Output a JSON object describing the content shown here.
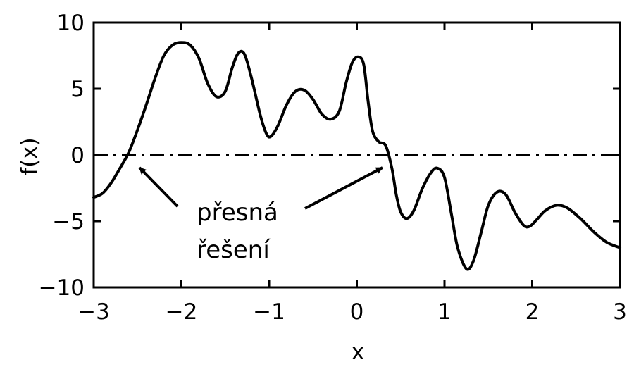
{
  "chart_data": {
    "type": "line",
    "title": "",
    "xlabel": "x",
    "ylabel": "f(x)",
    "xlim": [
      -3,
      3
    ],
    "ylim": [
      -10,
      10
    ],
    "x_ticks": [
      -3,
      -2,
      -1,
      0,
      1,
      2,
      3
    ],
    "x_tick_labels": [
      "−3",
      "−2",
      "−1",
      "0",
      "1",
      "2",
      "3"
    ],
    "y_ticks": [
      -10,
      -5,
      0,
      5,
      10
    ],
    "y_tick_labels": [
      "−10",
      "−5",
      "0",
      "5",
      "10"
    ],
    "grid": false,
    "series": [
      {
        "style": "solid",
        "color": "#000000",
        "points": [
          [
            -3.0,
            -3.2
          ],
          [
            -2.9,
            -2.9
          ],
          [
            -2.8,
            -2.1
          ],
          [
            -2.7,
            -1.0
          ],
          [
            -2.6,
            0.2
          ],
          [
            -2.5,
            1.9
          ],
          [
            -2.4,
            3.8
          ],
          [
            -2.3,
            5.8
          ],
          [
            -2.2,
            7.5
          ],
          [
            -2.1,
            8.3
          ],
          [
            -2.0,
            8.5
          ],
          [
            -1.9,
            8.3
          ],
          [
            -1.8,
            7.3
          ],
          [
            -1.7,
            5.4
          ],
          [
            -1.6,
            4.4
          ],
          [
            -1.5,
            4.8
          ],
          [
            -1.42,
            6.6
          ],
          [
            -1.35,
            7.7
          ],
          [
            -1.28,
            7.6
          ],
          [
            -1.2,
            5.8
          ],
          [
            -1.1,
            3.0
          ],
          [
            -1.03,
            1.6
          ],
          [
            -0.98,
            1.4
          ],
          [
            -0.9,
            2.2
          ],
          [
            -0.8,
            3.8
          ],
          [
            -0.7,
            4.8
          ],
          [
            -0.6,
            4.9
          ],
          [
            -0.5,
            4.2
          ],
          [
            -0.4,
            3.1
          ],
          [
            -0.3,
            2.7
          ],
          [
            -0.2,
            3.3
          ],
          [
            -0.12,
            5.5
          ],
          [
            -0.05,
            7.0
          ],
          [
            0.02,
            7.4
          ],
          [
            0.08,
            6.8
          ],
          [
            0.13,
            4.0
          ],
          [
            0.18,
            1.8
          ],
          [
            0.25,
            1.0
          ],
          [
            0.33,
            0.7
          ],
          [
            0.4,
            -1.0
          ],
          [
            0.45,
            -3.0
          ],
          [
            0.5,
            -4.3
          ],
          [
            0.57,
            -4.8
          ],
          [
            0.65,
            -4.2
          ],
          [
            0.75,
            -2.5
          ],
          [
            0.85,
            -1.3
          ],
          [
            0.92,
            -1.0
          ],
          [
            1.0,
            -1.7
          ],
          [
            1.08,
            -4.5
          ],
          [
            1.15,
            -7.0
          ],
          [
            1.25,
            -8.6
          ],
          [
            1.33,
            -8.0
          ],
          [
            1.42,
            -5.8
          ],
          [
            1.5,
            -3.8
          ],
          [
            1.6,
            -2.8
          ],
          [
            1.7,
            -3.0
          ],
          [
            1.8,
            -4.3
          ],
          [
            1.9,
            -5.3
          ],
          [
            1.97,
            -5.4
          ],
          [
            2.05,
            -4.9
          ],
          [
            2.15,
            -4.2
          ],
          [
            2.28,
            -3.8
          ],
          [
            2.4,
            -4.0
          ],
          [
            2.55,
            -4.8
          ],
          [
            2.7,
            -5.8
          ],
          [
            2.85,
            -6.6
          ],
          [
            3.0,
            -7.0
          ]
        ]
      },
      {
        "style": "dashdot",
        "color": "#000000",
        "points": [
          [
            -3,
            0
          ],
          [
            3,
            0
          ]
        ]
      }
    ],
    "annotation": {
      "text_lines": [
        "přesná",
        "řešení"
      ]
    }
  }
}
